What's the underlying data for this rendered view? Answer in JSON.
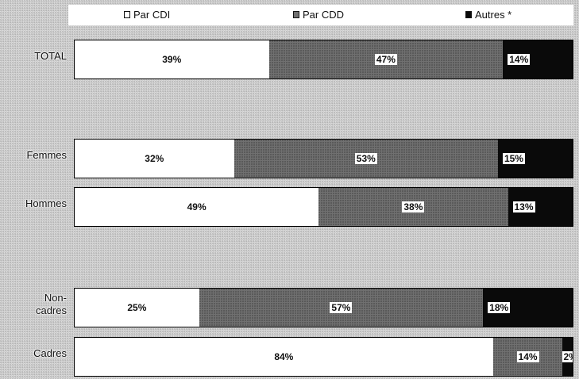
{
  "colors": {
    "cdi": "#ffffff",
    "cdd": "#707070",
    "autres": "#0a0a0a"
  },
  "chart_data": {
    "type": "bar",
    "stacked": "100%",
    "orientation": "horizontal",
    "legend": "top",
    "categories": [
      "TOTAL",
      "Femmes",
      "Hommes",
      "Non-\ncadres",
      "Cadres"
    ],
    "series": [
      {
        "name": "Par CDI",
        "values": [
          39,
          32,
          49,
          25,
          84
        ]
      },
      {
        "name": "Par CDD",
        "values": [
          47,
          53,
          38,
          57,
          14
        ]
      },
      {
        "name": "Autres *",
        "values": [
          14,
          15,
          13,
          18,
          2
        ]
      }
    ],
    "data_labels": [
      [
        "39%",
        "47%",
        "14%"
      ],
      [
        "32%",
        "53%",
        "15%"
      ],
      [
        "49%",
        "38%",
        "13%"
      ],
      [
        "25%",
        "57%",
        "18%"
      ],
      [
        "84%",
        "14%",
        "2%"
      ]
    ],
    "legend_labels": [
      "Par CDI",
      "Par CDD",
      "Autres *"
    ]
  }
}
